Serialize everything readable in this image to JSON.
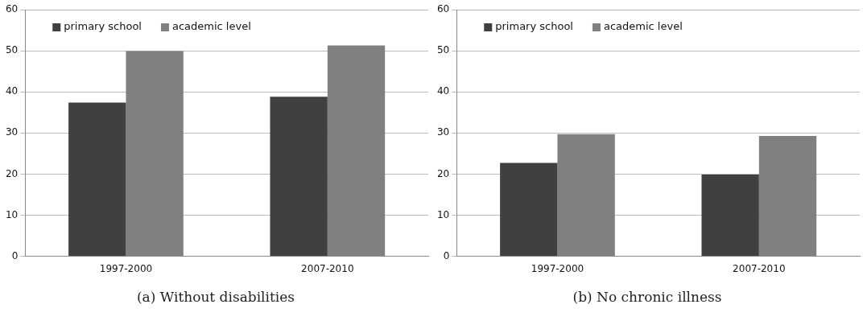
{
  "chart_data": [
    {
      "type": "bar",
      "title": "(a) Without disabilities",
      "categories": [
        "1997-2000",
        "2007-2010"
      ],
      "series": [
        {
          "name": "primary school",
          "color": "#404040",
          "values": [
            37.4,
            38.8
          ]
        },
        {
          "name": "academic level",
          "color": "#808080",
          "values": [
            49.9,
            51.3
          ]
        }
      ],
      "ylim": [
        0,
        60
      ],
      "yticks": [
        0,
        10,
        20,
        30,
        40,
        50,
        60
      ],
      "grid": "y",
      "legend": "top left"
    },
    {
      "type": "bar",
      "title": "(b) No chronic illness",
      "categories": [
        "1997-2000",
        "2007-2010"
      ],
      "series": [
        {
          "name": "primary school",
          "color": "#404040",
          "values": [
            22.7,
            19.9
          ]
        },
        {
          "name": "academic level",
          "color": "#808080",
          "values": [
            29.7,
            29.3
          ]
        }
      ],
      "ylim": [
        0,
        60
      ],
      "yticks": [
        0,
        10,
        20,
        30,
        40,
        50,
        60
      ],
      "grid": "y",
      "legend": "top left"
    }
  ]
}
